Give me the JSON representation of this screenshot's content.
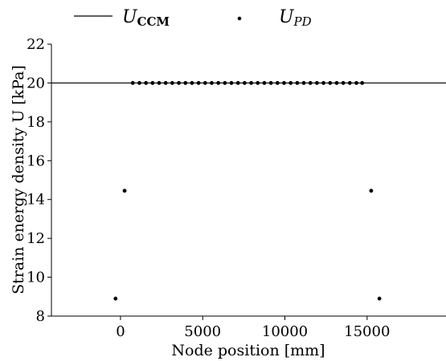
{
  "chart_data": {
    "type": "scatter",
    "xlabel": "Node position [mm]",
    "ylabel": "Strain energy density U [kPa]",
    "xlim": [
      -4200,
      19800
    ],
    "ylim": [
      8,
      22
    ],
    "xticks": [
      0,
      5000,
      10000,
      15000
    ],
    "yticks": [
      8,
      10,
      12,
      14,
      16,
      18,
      20,
      22
    ],
    "legend": {
      "position": "top",
      "entries": [
        {
          "symbol": "U",
          "subscript": "CCM",
          "style": "line"
        },
        {
          "symbol": "U",
          "subscript": "PD",
          "style": "dot"
        }
      ]
    },
    "series": [
      {
        "name": "U_CCM",
        "style": "line",
        "x": [
          -4200,
          19800
        ],
        "y": [
          20,
          20
        ]
      },
      {
        "name": "U_PD",
        "style": "scatter",
        "x": [
          -300,
          250,
          750,
          1150,
          1550,
          1950,
          2350,
          2750,
          3150,
          3550,
          3950,
          4350,
          4750,
          5150,
          5550,
          5950,
          6350,
          6750,
          7150,
          7550,
          7950,
          8350,
          8750,
          9150,
          9550,
          9950,
          10350,
          10750,
          11150,
          11550,
          11950,
          12350,
          12750,
          13150,
          13550,
          13950,
          14350,
          14700,
          15250,
          15750
        ],
        "y": [
          8.9,
          14.45,
          20,
          20,
          20,
          20,
          20,
          20,
          20,
          20,
          20,
          20,
          20,
          20,
          20,
          20,
          20,
          20,
          20,
          20,
          20,
          20,
          20,
          20,
          20,
          20,
          20,
          20,
          20,
          20,
          20,
          20,
          20,
          20,
          20,
          20,
          20,
          20,
          14.45,
          8.9
        ]
      }
    ]
  }
}
